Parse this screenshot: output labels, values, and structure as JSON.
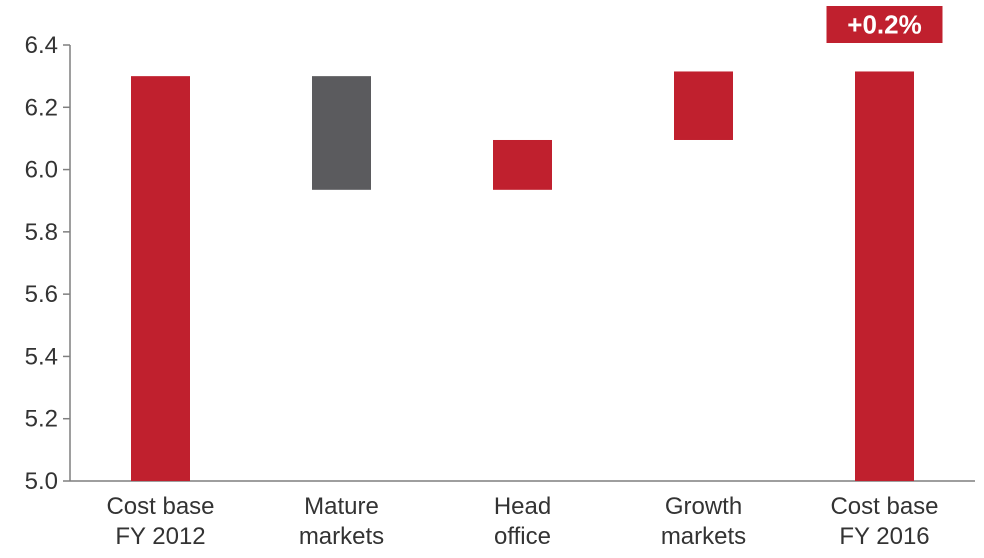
{
  "chart_data": {
    "type": "bar",
    "subtype": "waterfall",
    "title": "",
    "xlabel": "",
    "ylabel": "",
    "ylim": [
      5.0,
      6.4
    ],
    "yticks": [
      5.0,
      5.2,
      5.4,
      5.6,
      5.8,
      6.0,
      6.2,
      6.4
    ],
    "ytick_labels": [
      "5.0",
      "5.2",
      "5.4",
      "5.6",
      "5.8",
      "6.0",
      "6.2",
      "6.4"
    ],
    "grid": false,
    "legend": "none",
    "categories": [
      [
        "Cost base",
        "FY 2012"
      ],
      [
        "Mature",
        "markets"
      ],
      [
        "Head",
        "office"
      ],
      [
        "Growth",
        "markets"
      ],
      [
        "Cost base",
        "FY 2016"
      ]
    ],
    "bars": [
      {
        "kind": "total",
        "start": 5.0,
        "end": 6.3,
        "color": "#C0202E"
      },
      {
        "kind": "decrease",
        "start": 6.3,
        "end": 5.935,
        "color": "#5B5B5E"
      },
      {
        "kind": "increase",
        "start": 5.935,
        "end": 6.095,
        "color": "#C0202E"
      },
      {
        "kind": "increase",
        "start": 6.095,
        "end": 6.315,
        "color": "#C0202E"
      },
      {
        "kind": "total",
        "start": 5.0,
        "end": 6.315,
        "color": "#C0202E"
      }
    ],
    "annotation": {
      "text": "+0.2%",
      "category_index": 4,
      "bg_color": "#C0202E",
      "text_color": "#ffffff"
    },
    "colors": {
      "axis": "#7f7f7f",
      "text": "#333333"
    }
  }
}
